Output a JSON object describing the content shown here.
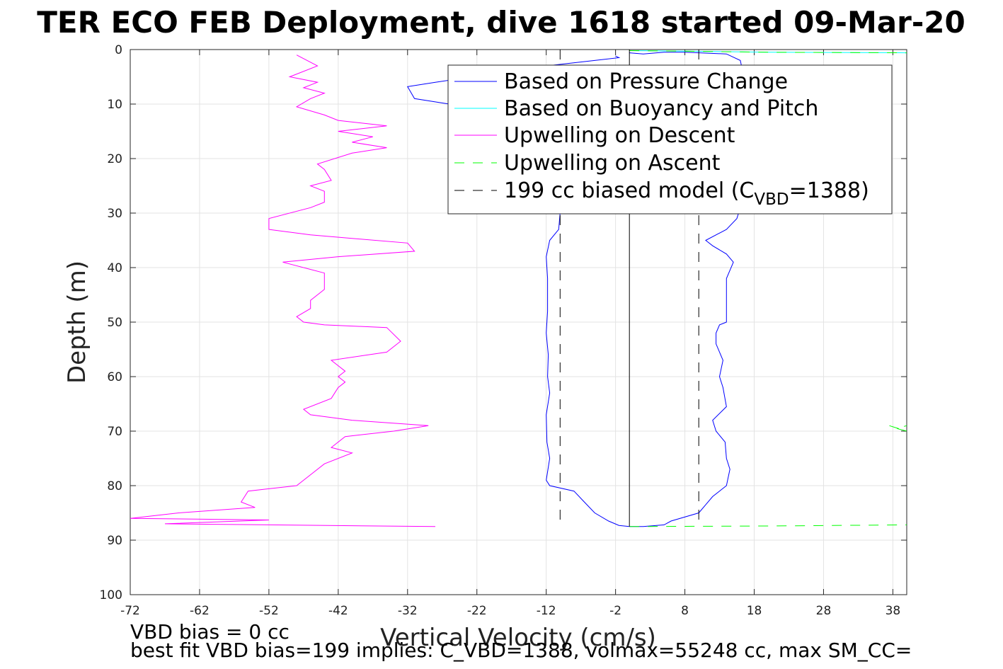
{
  "chart_data": {
    "type": "line",
    "title": "TER ECO FEB Deployment, dive 1618 started 09-Mar-20",
    "xlabel": "Vertical Velocity (cm/s)",
    "ylabel": "Depth (m)",
    "xlim": [
      -72,
      40
    ],
    "ylim": [
      0,
      100
    ],
    "y_reversed": true,
    "grid": true,
    "x_ticks": [
      -72,
      -62,
      -52,
      -42,
      -32,
      -22,
      -12,
      -2,
      8,
      18,
      28,
      38
    ],
    "y_ticks": [
      0,
      10,
      20,
      30,
      40,
      50,
      60,
      70,
      80,
      90,
      100
    ],
    "legend": {
      "position": "top-right",
      "entries": [
        "Based on Pressure Change",
        "Based on Buoyancy and Pitch",
        "Upwelling on Descent",
        "Upwelling on Ascent",
        "199 cc biased model (C"
      ],
      "last_entry_sub": "VBD",
      "last_entry_tail": "=1388)"
    },
    "series": [
      {
        "name": "Based on Pressure Change",
        "color": "#0000ff",
        "style": "solid",
        "points": [
          [
            -2,
            1.2
          ],
          [
            -1.5,
            1.5
          ],
          [
            -5,
            2
          ],
          [
            -12,
            3
          ],
          [
            -20,
            4.5
          ],
          [
            -28,
            6
          ],
          [
            -32,
            6.8
          ],
          [
            -31,
            9
          ],
          [
            -26,
            10
          ],
          [
            -21,
            11
          ],
          [
            -17,
            13
          ],
          [
            -14,
            16
          ],
          [
            -12.5,
            20
          ],
          [
            -12,
            25
          ],
          [
            -10,
            30
          ],
          [
            -10.2,
            33
          ],
          [
            -11.5,
            35
          ],
          [
            -12,
            38
          ],
          [
            -11.8,
            42
          ],
          [
            -11.8,
            48
          ],
          [
            -12,
            52
          ],
          [
            -11.7,
            56
          ],
          [
            -11.8,
            60
          ],
          [
            -11.5,
            63
          ],
          [
            -12,
            67
          ],
          [
            -11.9,
            72
          ],
          [
            -11.5,
            75
          ],
          [
            -12,
            79
          ],
          [
            -11.5,
            80
          ],
          [
            -8,
            81
          ],
          [
            -6.5,
            83
          ],
          [
            -5,
            85
          ],
          [
            -3,
            86.5
          ],
          [
            -1.5,
            87.3
          ],
          [
            0,
            87.5
          ],
          [
            2,
            87.5
          ],
          [
            5,
            87.2
          ],
          [
            6,
            86.5
          ],
          [
            10,
            85
          ],
          [
            11,
            83.5
          ],
          [
            12,
            82
          ],
          [
            14,
            80
          ],
          [
            14.5,
            77
          ],
          [
            14,
            75
          ],
          [
            13.8,
            72
          ],
          [
            12.5,
            70
          ],
          [
            12,
            68
          ],
          [
            14,
            65.5
          ],
          [
            13.5,
            62
          ],
          [
            13,
            60
          ],
          [
            13.5,
            57
          ],
          [
            12.5,
            54
          ],
          [
            12.5,
            52
          ],
          [
            13,
            50.5
          ],
          [
            14,
            50
          ],
          [
            14,
            45
          ],
          [
            14,
            42
          ],
          [
            15,
            39
          ],
          [
            14,
            37.5
          ],
          [
            12,
            36
          ],
          [
            11,
            35
          ],
          [
            14,
            33
          ],
          [
            15.5,
            31
          ],
          [
            16,
            29
          ],
          [
            16,
            24
          ],
          [
            15.5,
            20
          ],
          [
            15,
            15
          ],
          [
            15.5,
            10
          ],
          [
            16.5,
            5
          ],
          [
            16,
            2
          ],
          [
            14,
            0.8
          ],
          [
            8,
            0.5
          ],
          [
            5,
            0.5
          ],
          [
            2,
            0.8
          ],
          [
            0,
            0.6
          ]
        ]
      },
      {
        "name": "Based on Buoyancy and Pitch",
        "color": "#00ffff",
        "style": "solid",
        "points": [
          [
            0,
            0.2
          ],
          [
            8,
            0.3
          ],
          [
            20,
            0.5
          ],
          [
            40,
            0.6
          ]
        ]
      },
      {
        "name": "Upwelling on Descent",
        "color": "#ff00ff",
        "style": "solid",
        "points": [
          [
            -48,
            1
          ],
          [
            -45,
            3
          ],
          [
            -49,
            5
          ],
          [
            -45,
            6
          ],
          [
            -47,
            7
          ],
          [
            -44,
            8
          ],
          [
            -46,
            9
          ],
          [
            -48,
            10.5
          ],
          [
            -44,
            12
          ],
          [
            -42,
            13
          ],
          [
            -35,
            14
          ],
          [
            -42,
            15
          ],
          [
            -37,
            16
          ],
          [
            -40,
            17
          ],
          [
            -35,
            18
          ],
          [
            -40,
            19
          ],
          [
            -45,
            21
          ],
          [
            -44,
            22
          ],
          [
            -43,
            24
          ],
          [
            -46,
            25
          ],
          [
            -44,
            26
          ],
          [
            -44,
            28
          ],
          [
            -46,
            29
          ],
          [
            -52,
            31
          ],
          [
            -52,
            33
          ],
          [
            -46,
            34
          ],
          [
            -32,
            35.5
          ],
          [
            -31,
            37
          ],
          [
            -42,
            38
          ],
          [
            -50,
            39
          ],
          [
            -44,
            41
          ],
          [
            -44,
            44
          ],
          [
            -46,
            46
          ],
          [
            -46,
            47.5
          ],
          [
            -48,
            49
          ],
          [
            -47,
            50
          ],
          [
            -44,
            50.5
          ],
          [
            -35,
            51
          ],
          [
            -33,
            53.5
          ],
          [
            -35,
            55.5
          ],
          [
            -43,
            57
          ],
          [
            -42,
            58
          ],
          [
            -41,
            59
          ],
          [
            -42,
            60
          ],
          [
            -41,
            61
          ],
          [
            -42,
            62
          ],
          [
            -43,
            64
          ],
          [
            -47,
            66
          ],
          [
            -46,
            67
          ],
          [
            -40,
            68
          ],
          [
            -29,
            69
          ],
          [
            -34,
            70
          ],
          [
            -41,
            71
          ],
          [
            -43,
            73
          ],
          [
            -40,
            74
          ],
          [
            -44,
            76
          ],
          [
            -46,
            78
          ],
          [
            -48,
            80
          ],
          [
            -55,
            81
          ],
          [
            -56,
            83
          ],
          [
            -54,
            84
          ],
          [
            -65,
            85
          ],
          [
            -72,
            86
          ],
          [
            -52,
            86.3
          ],
          [
            -67,
            87
          ],
          [
            -28,
            87.5
          ]
        ]
      },
      {
        "name": "Upwelling on Ascent",
        "color": "#00ff00",
        "style": "dashed",
        "points": [
          [
            0,
            0.2
          ],
          [
            8,
            0.3
          ],
          [
            20,
            0.5
          ],
          [
            40,
            0.6
          ]
        ]
      },
      {
        "name": "Upwelling on Ascent",
        "color": "#00ff00",
        "style": "dashed",
        "points": [
          [
            0,
            87.5
          ],
          [
            20,
            87.4
          ],
          [
            40,
            87.2
          ]
        ]
      },
      {
        "name": "Upwelling on Ascent",
        "color": "#00ff00",
        "style": "dashed",
        "points": [
          [
            37.5,
            69
          ],
          [
            40,
            70
          ],
          [
            38.5,
            69.5
          ],
          [
            40,
            69
          ]
        ]
      },
      {
        "name": "199 cc biased model (CVBD=1388)",
        "color": "#000000",
        "style": "dashed",
        "points": [
          [
            -10,
            0
          ],
          [
            -10,
            87.5
          ]
        ]
      },
      {
        "name": "199 cc biased model (CVBD=1388)",
        "color": "#000000",
        "style": "dashed",
        "points": [
          [
            10,
            0
          ],
          [
            10,
            87.5
          ]
        ]
      },
      {
        "name": "zero line",
        "color": "#000000",
        "style": "solid",
        "points": [
          [
            0,
            0
          ],
          [
            0,
            87.5
          ]
        ]
      }
    ],
    "annotations": [
      "VBD bias = 0 cc",
      "best fit VBD bias=199 implies: C_VBD=1388, volmax=55248 cc, max SM_CC="
    ]
  }
}
